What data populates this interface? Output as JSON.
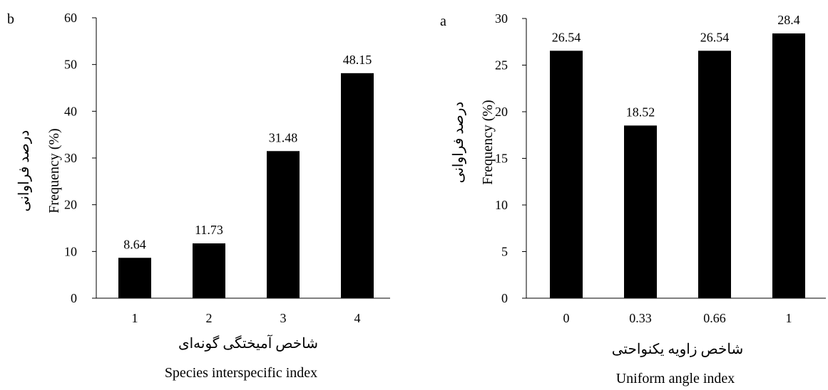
{
  "chart_data": [
    {
      "panel_label": "b",
      "type": "bar",
      "categories": [
        "1",
        "2",
        "3",
        "4"
      ],
      "values": [
        8.64,
        11.73,
        31.48,
        48.15
      ],
      "data_labels": [
        "8.64",
        "11.73",
        "31.48",
        "48.15"
      ],
      "ylim": [
        0,
        60
      ],
      "yticks": [
        "0",
        "10",
        "20",
        "30",
        "40",
        "50",
        "60"
      ],
      "ylabel": "Frequency (%)",
      "ylabel_fa": "درصد فراوانی",
      "xlabel_fa": "شاخص آمیختگی گونه‌ای",
      "xlabel": "Species interspecific index",
      "bar_color": "#000000",
      "grid": false
    },
    {
      "panel_label": "a",
      "type": "bar",
      "categories": [
        "0",
        "0.33",
        "0.66",
        "1"
      ],
      "values": [
        26.54,
        18.52,
        26.54,
        28.4
      ],
      "data_labels": [
        "26.54",
        "18.52",
        "26.54",
        "28.4"
      ],
      "ylim": [
        0,
        30
      ],
      "yticks": [
        "0",
        "5",
        "10",
        "15",
        "20",
        "25",
        "30"
      ],
      "ylabel": "Frequency (%)",
      "ylabel_fa": "درصد فراوانی",
      "xlabel_fa": "شاخص زاویه یکنواحتی",
      "xlabel": "Uniform angle index",
      "bar_color": "#000000",
      "grid": false
    }
  ]
}
